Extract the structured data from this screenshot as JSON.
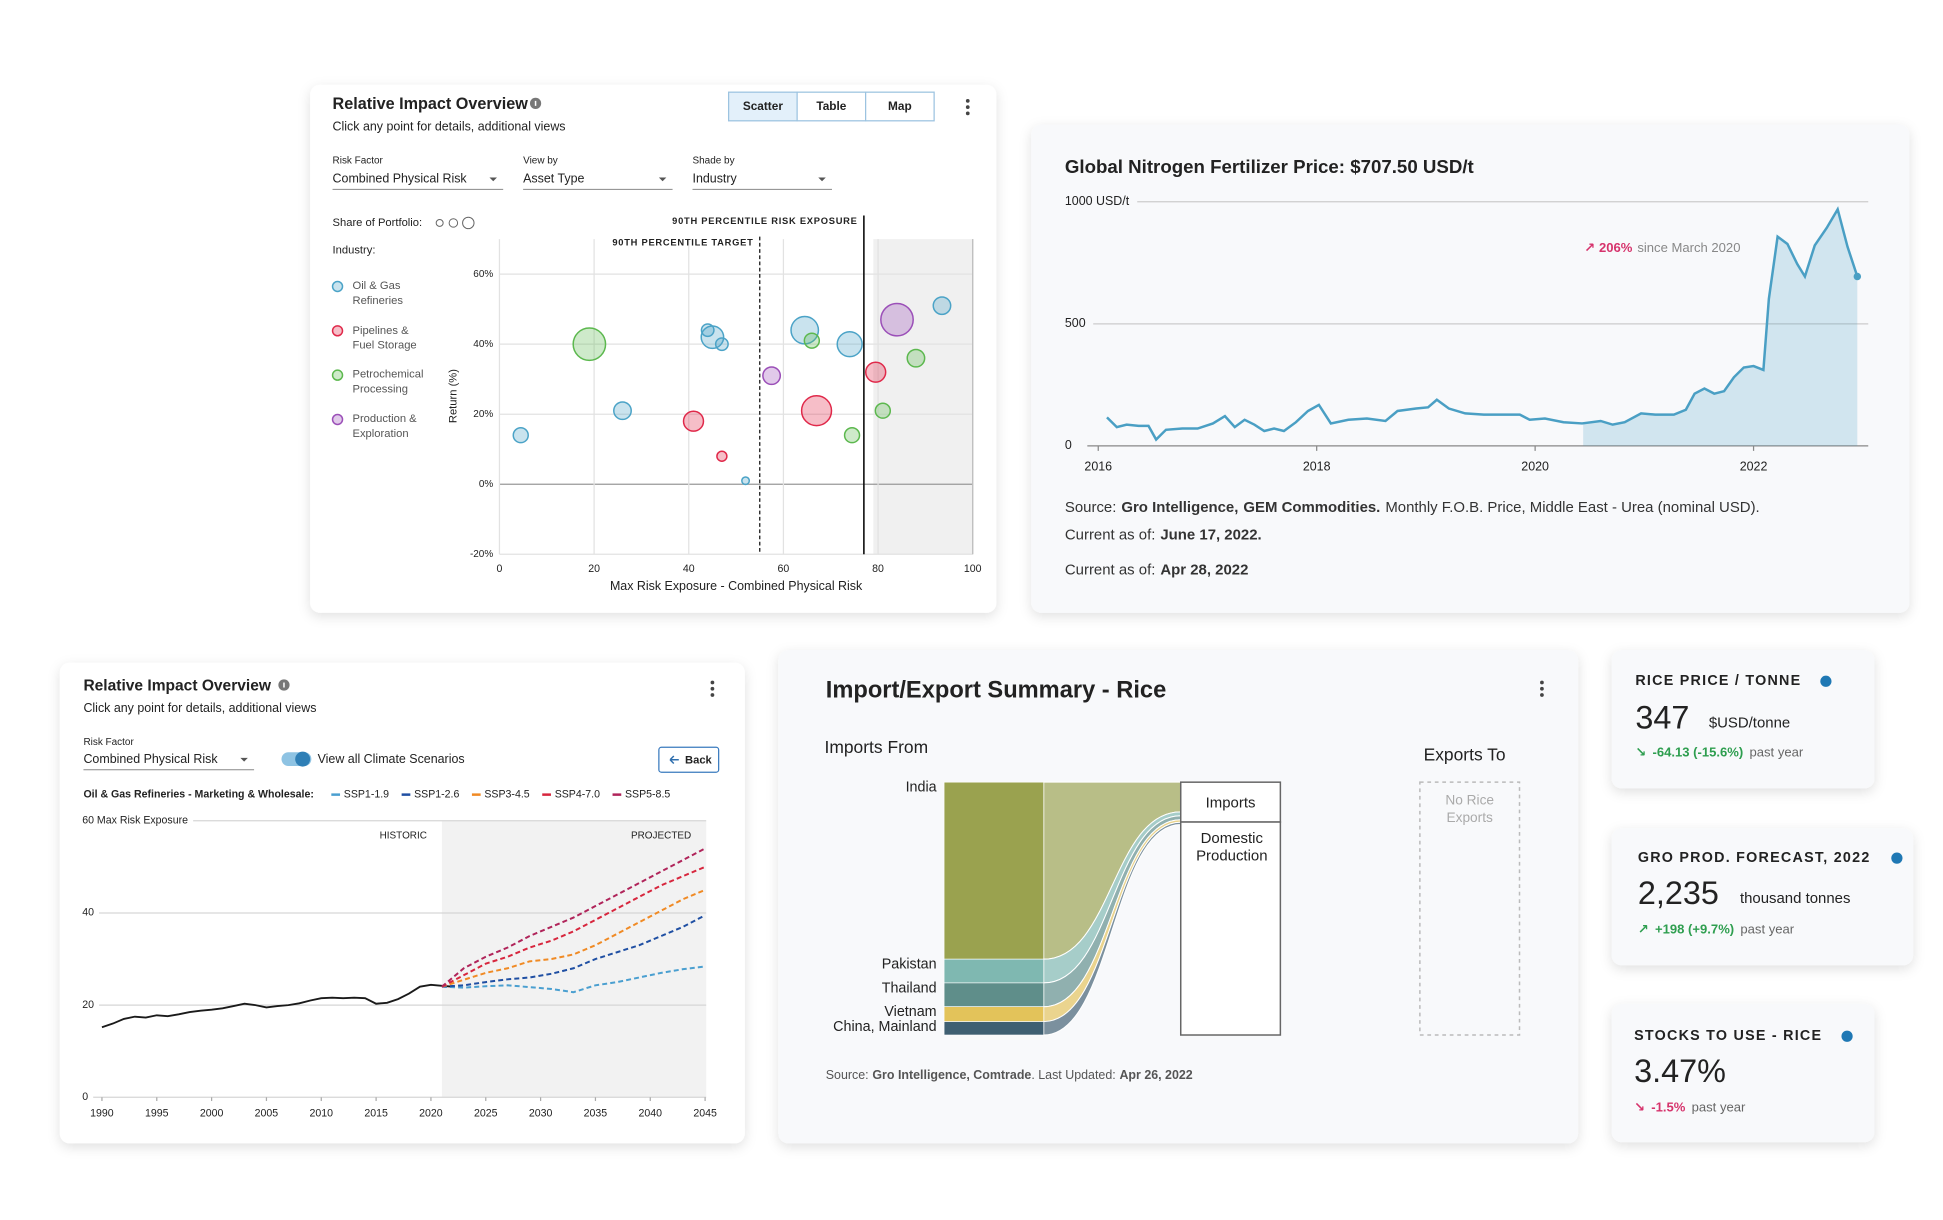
{
  "chart_data": [
    {
      "type": "scatter",
      "title": "Relative Impact Overview",
      "subtitle": "Click any point for details, additional views",
      "buttons": [
        "Scatter",
        "Table",
        "Map"
      ],
      "controls": [
        {
          "label": "Risk Factor",
          "value": "Combined Physical Risk"
        },
        {
          "label": "View by",
          "value": "Asset Type"
        },
        {
          "label": "Shade by",
          "value": "Industry"
        }
      ],
      "size_legend_label": "Share of Portfolio:",
      "legend_title": "Industry:",
      "xlabel": "Max Risk Exposure - Combined Physical Risk",
      "ylabel": "Return (%)",
      "xlim": [
        0,
        100
      ],
      "xticks": [
        0,
        20,
        40,
        60,
        80,
        100
      ],
      "ylim": [
        -20,
        70
      ],
      "yticks": [
        {
          "value": -20,
          "label": "-20%"
        },
        {
          "value": 0,
          "label": "0%"
        },
        {
          "value": 20,
          "label": "20%"
        },
        {
          "value": 40,
          "label": "40%"
        },
        {
          "value": 60,
          "label": "60%"
        }
      ],
      "grid": true,
      "shaded_range": [
        79,
        100
      ],
      "annotations": [
        {
          "text": "90TH PERCENTILE RISK EXPOSURE",
          "x": 77
        },
        {
          "text": "90TH PERCENTILE TARGET",
          "x": 55
        }
      ],
      "series": [
        {
          "name": "Oil & Gas Refineries",
          "color": "#4ba3c7",
          "x": [
            4.5,
            26,
            44,
            45,
            47,
            52,
            64.5,
            74,
            93.5
          ],
          "values": [
            14,
            21,
            44,
            42,
            40,
            1,
            44,
            40,
            51
          ],
          "sizes": [
            36,
            49,
            25,
            81,
            25,
            9,
            121,
            100,
            49
          ]
        },
        {
          "name": "Pipelines & Fuel Storage",
          "color": "#e0294a",
          "x": [
            41,
            47,
            67,
            79.5
          ],
          "values": [
            18,
            8,
            21,
            32
          ],
          "sizes": [
            64,
            16,
            144,
            64
          ]
        },
        {
          "name": "Petrochemical Processing",
          "color": "#5cb84e",
          "x": [
            19,
            66,
            74.5,
            81,
            88
          ],
          "values": [
            40,
            41,
            14,
            21,
            36
          ],
          "sizes": [
            169,
            36,
            36,
            36,
            49
          ]
        },
        {
          "name": "Production & Exploration",
          "color": "#9b4fb8",
          "x": [
            57.5,
            84
          ],
          "values": [
            31,
            47
          ],
          "sizes": [
            49,
            169
          ]
        }
      ]
    },
    {
      "type": "line",
      "title": "Global Nitrogen Fertilizer Price: $707.50 USD/t",
      "color": "#4a9fc4",
      "xlim": [
        2015.9,
        2023.05
      ],
      "xticks": [
        2016,
        2018,
        2020,
        2022
      ],
      "ylim": [
        0,
        1000
      ],
      "yticks": [
        0,
        500,
        {
          "value": 1000,
          "label": "1000 USD/t"
        }
      ],
      "grid": true,
      "area_from": 2020.44,
      "annotation": {
        "arrow": "↗",
        "value": "206%",
        "text": "since March 2020"
      },
      "x": [
        2016.08,
        2016.17,
        2016.26,
        2016.37,
        2016.46,
        2016.53,
        2016.62,
        2016.77,
        2016.91,
        2017.05,
        2017.16,
        2017.25,
        2017.34,
        2017.43,
        2017.52,
        2017.61,
        2017.7,
        2017.81,
        2017.92,
        2018.02,
        2018.13,
        2018.29,
        2018.46,
        2018.63,
        2018.74,
        2018.91,
        2019.02,
        2019.1,
        2019.21,
        2019.36,
        2019.53,
        2019.7,
        2019.86,
        2019.95,
        2020.09,
        2020.26,
        2020.43,
        2020.6,
        2020.71,
        2020.82,
        2020.97,
        2021.1,
        2021.27,
        2021.38,
        2021.46,
        2021.55,
        2021.64,
        2021.73,
        2021.82,
        2021.91,
        2022.0,
        2022.09,
        2022.14,
        2022.22,
        2022.31,
        2022.4,
        2022.47,
        2022.56,
        2022.67,
        2022.77,
        2022.86,
        2022.95
      ],
      "values": [
        117,
        77,
        87,
        82,
        82,
        26,
        66,
        71,
        71,
        92,
        122,
        77,
        107,
        87,
        61,
        71,
        61,
        97,
        143,
        168,
        92,
        107,
        112,
        102,
        143,
        153,
        158,
        189,
        153,
        133,
        128,
        128,
        128,
        107,
        112,
        97,
        92,
        102,
        87,
        97,
        133,
        128,
        128,
        148,
        214,
        235,
        214,
        224,
        281,
        321,
        327,
        311,
        602,
        857,
        827,
        745,
        694,
        821,
        893,
        969,
        816,
        694
      ],
      "notes": {
        "source_label": "Source:",
        "source_1": "Gro Intelligence,",
        "source_2": "GEM Commodities.",
        "source_rest": "Monthly F.O.B. Price, Middle East - Urea (nominal USD).",
        "current_label": "Current as of:",
        "current_1": "June 17, 2022.",
        "current_2": "Apr 28, 2022"
      }
    },
    {
      "type": "line",
      "title": "Relative Impact Overview",
      "subtitle": "Click any point for details, additional views",
      "control": {
        "label": "Risk Factor",
        "value": "Combined Physical Risk"
      },
      "toggle_label": "View all Climate Scenarios",
      "back_button": "Back",
      "legend_title": "Oil & Gas Refineries - Marketing & Wholesale:",
      "annotations": [
        "HISTORIC",
        "PROJECTED"
      ],
      "projected_from": 2021,
      "xlim": [
        1988.2,
        2045.1
      ],
      "xticks": [
        1990,
        1995,
        2000,
        2005,
        2010,
        2015,
        2020,
        2025,
        2030,
        2035,
        2040,
        2045
      ],
      "ylim": [
        0,
        60
      ],
      "yticks": [
        0,
        20,
        40,
        {
          "value": 60,
          "label": "60 Max Risk Exposure"
        }
      ],
      "grid": true,
      "series": [
        {
          "color": "#1a1a1a",
          "dashed": false,
          "x": [
            1990,
            1991,
            1992,
            1993,
            1994,
            1995,
            1996,
            1997,
            1998,
            1999,
            2000,
            2001,
            2002,
            2003,
            2004,
            2005,
            2006,
            2007,
            2008,
            2009,
            2010,
            2011,
            2012,
            2013,
            2014,
            2015,
            2016,
            2017,
            2018,
            2019,
            2020,
            2021,
            2022
          ],
          "values": [
            15.2,
            16,
            17,
            17.5,
            17.3,
            17.8,
            17.6,
            18,
            18.5,
            18.8,
            19,
            19.3,
            19.8,
            20.3,
            20,
            19.5,
            19.8,
            20,
            20.4,
            21,
            21.5,
            21.6,
            21.5,
            21.6,
            21.5,
            20.3,
            20.5,
            21.3,
            22.5,
            24,
            24.4,
            24.2,
            24
          ]
        },
        {
          "name": "SSP1-1.9",
          "color": "#4a9fd0",
          "dashed": true,
          "x": [
            2021,
            2023,
            2025,
            2027,
            2029,
            2031,
            2033,
            2035,
            2037,
            2039,
            2041,
            2043,
            2045
          ],
          "values": [
            24,
            23.8,
            24.1,
            24.3,
            23.9,
            23.5,
            22.8,
            24.3,
            25,
            26,
            27,
            27.8,
            28.4
          ]
        },
        {
          "name": "SSP1-2.6",
          "color": "#1f4fa3",
          "dashed": true,
          "x": [
            2021,
            2023,
            2025,
            2027,
            2029,
            2031,
            2033,
            2035,
            2037,
            2039,
            2041,
            2043,
            2045
          ],
          "values": [
            24,
            24.3,
            25,
            25.6,
            26,
            26.8,
            28,
            30,
            31.5,
            33,
            35,
            37,
            39.5
          ]
        },
        {
          "name": "SSP3-4.5",
          "color": "#f08a24",
          "dashed": true,
          "x": [
            2021,
            2023,
            2025,
            2027,
            2029,
            2031,
            2033,
            2035,
            2037,
            2039,
            2041,
            2043,
            2045
          ],
          "values": [
            24,
            25.5,
            27,
            28,
            29.5,
            30,
            31,
            33,
            35.5,
            38,
            40.5,
            43,
            45
          ]
        },
        {
          "name": "SSP4-7.0",
          "color": "#d7263d",
          "dashed": true,
          "x": [
            2021,
            2023,
            2025,
            2027,
            2029,
            2031,
            2033,
            2035,
            2037,
            2039,
            2041,
            2043,
            2045
          ],
          "values": [
            24,
            26.5,
            29,
            30.5,
            32.5,
            34,
            36,
            38.5,
            41,
            43.5,
            46,
            48,
            50
          ]
        },
        {
          "name": "SSP5-8.5",
          "color": "#b0245a",
          "dashed": true,
          "x": [
            2021,
            2023,
            2025,
            2027,
            2029,
            2031,
            2033,
            2035,
            2037,
            2039,
            2041,
            2043,
            2045
          ],
          "values": [
            24,
            28,
            30.5,
            32.5,
            35,
            37,
            39,
            41.5,
            44,
            46.5,
            49,
            51.5,
            54
          ]
        }
      ]
    },
    {
      "type": "sankey",
      "title": "Import/Export Summary - Rice",
      "sources_label": "Imports From",
      "targets_label": "Exports To",
      "categories": [
        "India",
        "Pakistan",
        "Thailand",
        "Vietnam",
        "China, Mainland"
      ],
      "values": [
        70,
        9.4,
        9.4,
        5.9,
        5.3
      ],
      "colors": [
        "#9aa24f",
        "#7fb8b1",
        "#5f8e8a",
        "#e3c35a",
        "#3f5f72"
      ],
      "nodes": [
        "Imports",
        "Domestic Production"
      ],
      "empty_label": "No Rice Exports",
      "notes": {
        "prefix": "Source:",
        "bold": "Gro Intelligence, Comtrade",
        "middle": ". Last Updated:",
        "date": "Apr 26, 2022"
      }
    }
  ],
  "kpi_cards": [
    {
      "title": "RICE PRICE / TONNE",
      "value": "347",
      "unit": "$USD/tonne",
      "arrow": "↘",
      "change": "-64.13 (-15.6%)",
      "period": "past year",
      "tone": "#2e9e4f"
    },
    {
      "title": "GRO PROD. FORECAST, 2022",
      "value": "2,235",
      "unit": "thousand tonnes",
      "arrow": "↗",
      "change": "+198 (+9.7%)",
      "period": "past year",
      "tone": "#2e9e4f"
    },
    {
      "title": "STOCKS TO USE - RICE",
      "value": "3.47%",
      "arrow": "↘",
      "change": "-1.5%",
      "period": "past year",
      "tone": "#d6336c"
    }
  ]
}
